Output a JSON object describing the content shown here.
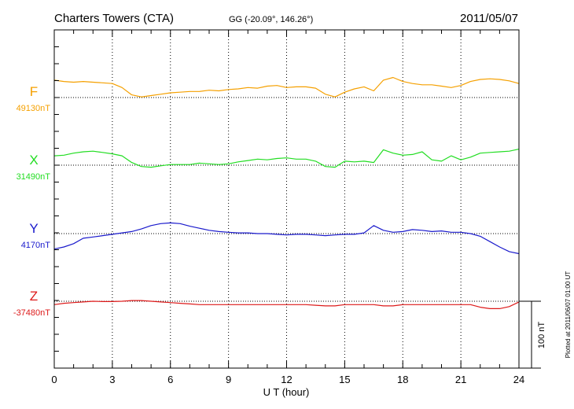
{
  "header": {
    "station": "Charters Towers (CTA)",
    "coords": "GG (-20.09°, 146.26°)",
    "date": "2011/05/07"
  },
  "side_note": "Plotted at 2011/06/07 01:00 UT",
  "scale_label": "100 nT",
  "colors": {
    "F": "#f5a000",
    "X": "#22dd22",
    "Y": "#1a1acc",
    "Z": "#dd1a1a"
  },
  "chart_data": {
    "type": "line",
    "xlabel": "U T (hour)",
    "xlim": [
      0,
      24
    ],
    "xticks": [
      "0",
      "3",
      "6",
      "9",
      "12",
      "15",
      "18",
      "21",
      "24"
    ],
    "scale_bar_nT": 100,
    "series": [
      {
        "name": "F",
        "baseline_label": "49130nT",
        "color": "#f5a000",
        "x": [
          0,
          0.5,
          1,
          1.5,
          2,
          2.5,
          3,
          3.5,
          4,
          4.5,
          5,
          5.5,
          6,
          6.5,
          7,
          7.5,
          8,
          8.5,
          9,
          9.5,
          10,
          10.5,
          11,
          11.5,
          12,
          12.5,
          13,
          13.5,
          14,
          14.5,
          15,
          15.5,
          16,
          16.5,
          17,
          17.5,
          18,
          18.5,
          19,
          19.5,
          20,
          20.5,
          21,
          21.5,
          22,
          22.5,
          23,
          23.5,
          24
        ],
        "y": [
          26,
          24,
          23,
          24,
          23,
          22,
          21,
          15,
          4,
          1,
          3,
          5,
          7,
          8,
          9,
          9,
          11,
          10,
          12,
          13,
          15,
          14,
          17,
          18,
          15,
          16,
          16,
          14,
          5,
          1,
          8,
          13,
          16,
          10,
          26,
          30,
          24,
          21,
          19,
          19,
          17,
          15,
          18,
          24,
          27,
          28,
          27,
          25,
          21
        ]
      },
      {
        "name": "X",
        "baseline_label": "31490nT",
        "color": "#22dd22",
        "x": [
          0,
          0.5,
          1,
          1.5,
          2,
          2.5,
          3,
          3.5,
          4,
          4.5,
          5,
          5.5,
          6,
          6.5,
          7,
          7.5,
          8,
          8.5,
          9,
          9.5,
          10,
          10.5,
          11,
          11.5,
          12,
          12.5,
          13,
          13.5,
          14,
          14.5,
          15,
          15.5,
          16,
          16.5,
          17,
          17.5,
          18,
          18.5,
          19,
          19.5,
          20,
          20.5,
          21,
          21.5,
          22,
          22.5,
          23,
          23.5,
          24
        ],
        "y": [
          14,
          15,
          18,
          20,
          21,
          19,
          17,
          14,
          4,
          -2,
          -3,
          -1,
          1,
          1,
          1,
          3,
          2,
          1,
          2,
          5,
          7,
          9,
          8,
          10,
          11,
          9,
          9,
          6,
          -2,
          -3,
          6,
          5,
          6,
          4,
          23,
          18,
          15,
          16,
          20,
          8,
          6,
          14,
          8,
          12,
          18,
          19,
          20,
          21,
          24
        ]
      },
      {
        "name": "Y",
        "baseline_label": "4170nT",
        "color": "#1a1acc",
        "x": [
          0,
          0.5,
          1,
          1.5,
          2,
          2.5,
          3,
          3.5,
          4,
          4.5,
          5,
          5.5,
          6,
          6.5,
          7,
          7.5,
          8,
          8.5,
          9,
          9.5,
          10,
          10.5,
          11,
          11.5,
          12,
          12.5,
          13,
          13.5,
          14,
          14.5,
          15,
          15.5,
          16,
          16.5,
          17,
          17.5,
          18,
          18.5,
          19,
          19.5,
          20,
          20.5,
          21,
          21.5,
          22,
          22.5,
          23,
          23.5,
          24
        ],
        "y": [
          -23,
          -20,
          -15,
          -7,
          -5,
          -3,
          -1,
          1,
          3,
          7,
          12,
          15,
          16,
          15,
          11,
          8,
          5,
          3,
          2,
          1,
          1,
          0,
          0,
          -1,
          -2,
          -1,
          -1,
          -2,
          -3,
          -2,
          -1,
          -1,
          1,
          12,
          5,
          2,
          3,
          6,
          5,
          3,
          4,
          2,
          2,
          0,
          -4,
          -12,
          -20,
          -27,
          -30
        ]
      },
      {
        "name": "Z",
        "baseline_label": "-37480nT",
        "color": "#dd1a1a",
        "x": [
          0,
          0.5,
          1,
          1.5,
          2,
          2.5,
          3,
          3.5,
          4,
          4.5,
          5,
          5.5,
          6,
          6.5,
          7,
          7.5,
          8,
          8.5,
          9,
          9.5,
          10,
          10.5,
          11,
          11.5,
          12,
          12.5,
          13,
          13.5,
          14,
          14.5,
          15,
          15.5,
          16,
          16.5,
          17,
          17.5,
          18,
          18.5,
          19,
          19.5,
          20,
          20.5,
          21,
          21.5,
          22,
          22.5,
          23,
          23.5,
          24
        ],
        "y": [
          -5,
          -3,
          -2,
          -1,
          0,
          -0.5,
          -0.5,
          0,
          1,
          1,
          0,
          -1,
          -2,
          -3,
          -4,
          -5,
          -5,
          -5,
          -5,
          -5,
          -5,
          -5,
          -5,
          -5,
          -5,
          -5,
          -5,
          -6,
          -7,
          -7,
          -5,
          -5,
          -5,
          -5,
          -7,
          -7,
          -5,
          -5,
          -5,
          -5,
          -5,
          -5,
          -5,
          -5,
          -9,
          -11,
          -11,
          -8,
          -1
        ]
      }
    ]
  }
}
